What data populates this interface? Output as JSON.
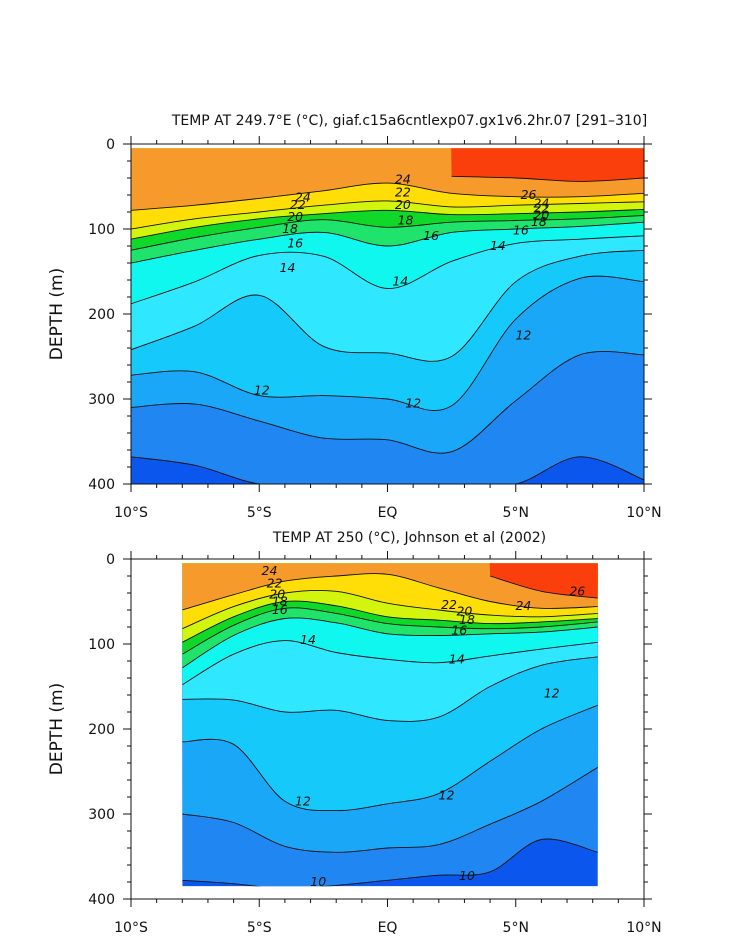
{
  "chart_data": [
    {
      "type": "contour",
      "title": "TEMP AT 249.7°E (°C), giaf.c15a6cntlexp07.gx1v6.2hr.07 [291–310]",
      "xlabel": "",
      "ylabel": "DEPTH (m)",
      "x_ticks": [
        "10°S",
        "5°S",
        "EQ",
        "5°N",
        "10°N"
      ],
      "x_tick_values": [
        -10,
        -5,
        0,
        5,
        10
      ],
      "xlim": [
        -10,
        10
      ],
      "y_ticks": [
        "0",
        "100",
        "200",
        "300",
        "400"
      ],
      "y_tick_values": [
        0,
        100,
        200,
        300,
        400
      ],
      "ylim": [
        0,
        400
      ],
      "y_inverted": true,
      "data_xlim": [
        -10,
        10
      ],
      "data_ylim": [
        5,
        400
      ],
      "x": [
        -10,
        -7.5,
        -5,
        -2.5,
        0,
        2.5,
        5,
        7.5,
        10
      ],
      "isotherms": [
        {
          "level": 10,
          "depth": [
            368,
            378,
            400,
            400,
            400,
            400,
            400,
            368,
            395
          ]
        },
        {
          "level": 11,
          "depth": [
            310,
            306,
            326,
            346,
            348,
            362,
            302,
            248,
            248
          ]
        },
        {
          "level": 12,
          "depth": [
            272,
            268,
            296,
            296,
            300,
            308,
            206,
            158,
            162
          ]
        },
        {
          "level": 13,
          "depth": [
            242,
            214,
            178,
            238,
            246,
            250,
            162,
            132,
            125
          ]
        },
        {
          "level": 14,
          "depth": [
            188,
            162,
            131,
            132,
            170,
            138,
            117,
            112,
            108
          ]
        },
        {
          "level": 16,
          "depth": [
            140,
            125,
            112,
            104,
            120,
            104,
            100,
            97,
            92
          ]
        },
        {
          "level": 18,
          "depth": [
            125,
            110,
            98,
            89,
            98,
            92,
            90,
            88,
            84
          ]
        },
        {
          "level": 20,
          "depth": [
            112,
            98,
            88,
            82,
            78,
            83,
            82,
            80,
            77
          ]
        },
        {
          "level": 22,
          "depth": [
            100,
            88,
            80,
            72,
            67,
            74,
            72,
            70,
            68
          ]
        },
        {
          "level": 24,
          "depth": [
            78,
            72,
            64,
            55,
            46,
            58,
            62,
            62,
            58
          ]
        },
        {
          "level": 26,
          "depth": [
            null,
            null,
            null,
            null,
            null,
            38,
            40,
            44,
            40
          ]
        }
      ],
      "contour_labels": [
        {
          "text": "24",
          "x": -3.3,
          "depth": 63
        },
        {
          "text": "22",
          "x": -3.5,
          "depth": 72
        },
        {
          "text": "20",
          "x": -3.6,
          "depth": 86
        },
        {
          "text": "18",
          "x": -3.8,
          "depth": 100
        },
        {
          "text": "16",
          "x": -3.6,
          "depth": 117
        },
        {
          "text": "14",
          "x": -3.9,
          "depth": 146
        },
        {
          "text": "24",
          "x": 0.6,
          "depth": 42
        },
        {
          "text": "22",
          "x": 0.6,
          "depth": 57
        },
        {
          "text": "20",
          "x": 0.6,
          "depth": 72
        },
        {
          "text": "18",
          "x": 0.7,
          "depth": 90
        },
        {
          "text": "16",
          "x": 1.7,
          "depth": 108
        },
        {
          "text": "14",
          "x": 0.5,
          "depth": 162
        },
        {
          "text": "26",
          "x": 5.5,
          "depth": 60
        },
        {
          "text": "24",
          "x": 6.0,
          "depth": 70
        },
        {
          "text": "22",
          "x": 6.0,
          "depth": 76
        },
        {
          "text": "20",
          "x": 6.0,
          "depth": 84
        },
        {
          "text": "18",
          "x": 5.9,
          "depth": 92
        },
        {
          "text": "16",
          "x": 5.2,
          "depth": 102
        },
        {
          "text": "14",
          "x": 4.3,
          "depth": 120
        },
        {
          "text": "12",
          "x": 5.3,
          "depth": 225
        },
        {
          "text": "12",
          "x": -4.9,
          "depth": 290
        },
        {
          "text": "12",
          "x": 1.0,
          "depth": 305
        }
      ]
    },
    {
      "type": "contour",
      "title": "TEMP AT 250 (°C), Johnson et al (2002)",
      "xlabel": "",
      "ylabel": "DEPTH (m)",
      "x_ticks": [
        "10°S",
        "5°S",
        "EQ",
        "5°N",
        "10°N"
      ],
      "x_tick_values": [
        -10,
        -5,
        0,
        5,
        10
      ],
      "xlim": [
        -10,
        10
      ],
      "y_ticks": [
        "0",
        "100",
        "200",
        "300",
        "400"
      ],
      "y_tick_values": [
        0,
        100,
        200,
        300,
        400
      ],
      "ylim": [
        0,
        400
      ],
      "y_inverted": true,
      "data_xlim": [
        -8,
        8.2
      ],
      "data_ylim": [
        5,
        385
      ],
      "x": [
        -8,
        -6,
        -4,
        -2,
        0,
        2,
        4,
        6,
        8.2
      ],
      "isotherms": [
        {
          "level": 10,
          "depth": [
            378,
            382,
            388,
            384,
            378,
            372,
            368,
            330,
            345
          ]
        },
        {
          "level": 11,
          "depth": [
            300,
            310,
            338,
            345,
            340,
            336,
            312,
            285,
            245
          ]
        },
        {
          "level": 12,
          "depth": [
            215,
            218,
            285,
            296,
            288,
            276,
            238,
            200,
            172
          ]
        },
        {
          "level": 13,
          "depth": [
            165,
            166,
            180,
            178,
            190,
            186,
            150,
            125,
            115
          ]
        },
        {
          "level": 14,
          "depth": [
            148,
            112,
            96,
            110,
            118,
            122,
            114,
            106,
            98
          ]
        },
        {
          "level": 16,
          "depth": [
            128,
            90,
            70,
            75,
            88,
            90,
            88,
            86,
            80
          ]
        },
        {
          "level": 18,
          "depth": [
            112,
            78,
            58,
            64,
            76,
            80,
            82,
            80,
            74
          ]
        },
        {
          "level": 20,
          "depth": [
            98,
            68,
            50,
            55,
            68,
            72,
            76,
            74,
            70
          ]
        },
        {
          "level": 22,
          "depth": [
            82,
            56,
            40,
            38,
            52,
            60,
            66,
            68,
            64
          ]
        },
        {
          "level": 24,
          "depth": [
            60,
            42,
            26,
            20,
            18,
            34,
            50,
            58,
            56
          ]
        },
        {
          "level": 26,
          "depth": [
            null,
            null,
            null,
            null,
            null,
            null,
            20,
            38,
            46
          ]
        }
      ],
      "contour_labels": [
        {
          "text": "24",
          "x": -4.6,
          "depth": 14
        },
        {
          "text": "22",
          "x": -4.4,
          "depth": 29
        },
        {
          "text": "20",
          "x": -4.3,
          "depth": 42
        },
        {
          "text": "18",
          "x": -4.2,
          "depth": 50
        },
        {
          "text": "16",
          "x": -4.2,
          "depth": 60
        },
        {
          "text": "14",
          "x": -3.1,
          "depth": 95
        },
        {
          "text": "22",
          "x": 2.4,
          "depth": 54
        },
        {
          "text": "20",
          "x": 3.0,
          "depth": 62
        },
        {
          "text": "18",
          "x": 3.1,
          "depth": 72
        },
        {
          "text": "16",
          "x": 2.8,
          "depth": 84
        },
        {
          "text": "14",
          "x": 2.7,
          "depth": 118
        },
        {
          "text": "24",
          "x": 5.3,
          "depth": 55
        },
        {
          "text": "26",
          "x": 7.4,
          "depth": 38
        },
        {
          "text": "12",
          "x": 6.4,
          "depth": 158
        },
        {
          "text": "12",
          "x": -3.3,
          "depth": 285
        },
        {
          "text": "12",
          "x": 2.3,
          "depth": 278
        },
        {
          "text": "10",
          "x": -2.7,
          "depth": 380
        },
        {
          "text": "10",
          "x": 3.1,
          "depth": 373
        }
      ]
    }
  ],
  "colors": {
    "band_lt10": "#0b57ee",
    "band_10_11": "#1f86f2",
    "band_11_12": "#1aa7f7",
    "band_12_13": "#16c9fb",
    "band_13_14": "#2fe7ff",
    "band_14_16": "#10f7f0",
    "band_16_18": "#20e36b",
    "band_18_20": "#10d829",
    "band_20_22": "#d3f40c",
    "band_22_24": "#ffdd06",
    "band_24_26": "#f69a2c",
    "band_gt26": "#fb3f0c"
  }
}
